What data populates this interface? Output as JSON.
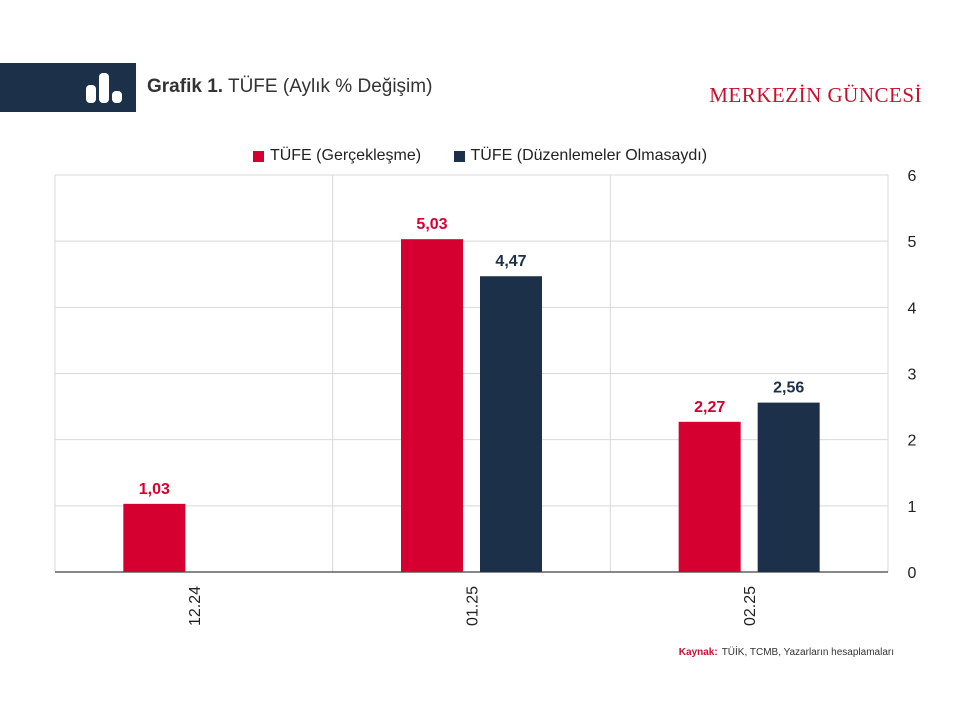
{
  "header": {
    "title_bold": "Grafik 1.",
    "title_rest": "TÜFE (Aylık % Değişim)",
    "brand": "MERKEZİN GÜNCESİ"
  },
  "source": {
    "label": "Kaynak:",
    "text": "TÜİK, TCMB, Yazarların hesaplamaları"
  },
  "colors": {
    "brand_red": "#c8102e",
    "navy": "#1c3049"
  },
  "chart_data": {
    "type": "bar",
    "title": "TÜFE (Aylık % Değişim)",
    "xlabel": "",
    "ylabel": "",
    "categories": [
      "12.24",
      "01.25",
      "02.25"
    ],
    "series": [
      {
        "name": "TÜFE (Gerçekleşme)",
        "color": "#d5002f",
        "values": [
          1.03,
          5.03,
          2.27
        ],
        "labels": [
          "1,03",
          "5,03",
          "2,27"
        ]
      },
      {
        "name": "TÜFE (Düzenlemeler Olmasaydı)",
        "color": "#1c3049",
        "values": [
          null,
          4.47,
          2.56
        ],
        "labels": [
          "",
          "4,47",
          "2,56"
        ]
      }
    ],
    "ylim": [
      0,
      6
    ],
    "yticks": [
      0,
      1,
      2,
      3,
      4,
      5,
      6
    ],
    "y_axis_side": "right",
    "grid": true,
    "legend_position": "top"
  }
}
